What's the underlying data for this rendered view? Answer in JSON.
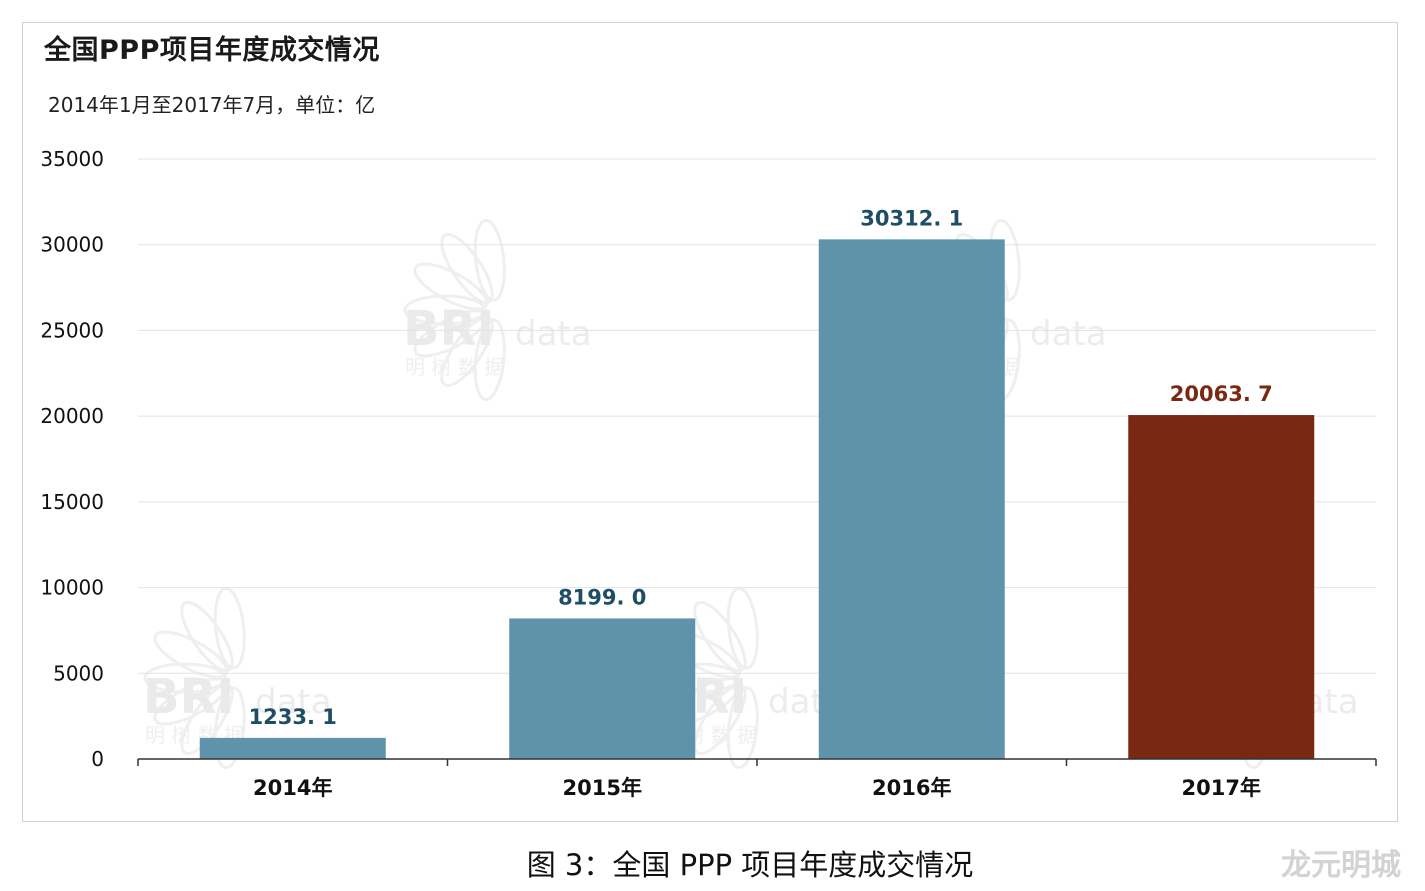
{
  "chart_data": {
    "type": "bar",
    "title": "全国PPP项目年度成交情况",
    "subtitle": "2014年1月至2017年7月，单位：亿",
    "categories": [
      "2014年",
      "2015年",
      "2016年",
      "2017年"
    ],
    "values": [
      1233.1,
      8199.0,
      30312.1,
      20063.7
    ],
    "value_labels": [
      "1233. 1",
      "8199. 0",
      "30312. 1",
      "20063. 7"
    ],
    "bar_colors": [
      "#5f93aa",
      "#5f93aa",
      "#5f93aa",
      "#7b2813"
    ],
    "label_colors": [
      "#1d4e63",
      "#1d4e63",
      "#1d4e63",
      "#7b2813"
    ],
    "ylim": [
      0,
      35000
    ],
    "yticks": [
      0,
      5000,
      10000,
      15000,
      20000,
      25000,
      30000,
      35000
    ],
    "grid": true,
    "xlabel": "",
    "ylabel": ""
  },
  "figure_caption": "图 3：全国 PPP 项目年度成交情况",
  "corner_mark": "龙元明城",
  "watermark": {
    "logo_text": "BRI",
    "logo_suffix": "data",
    "logo_cn": "明 树 数 据"
  }
}
